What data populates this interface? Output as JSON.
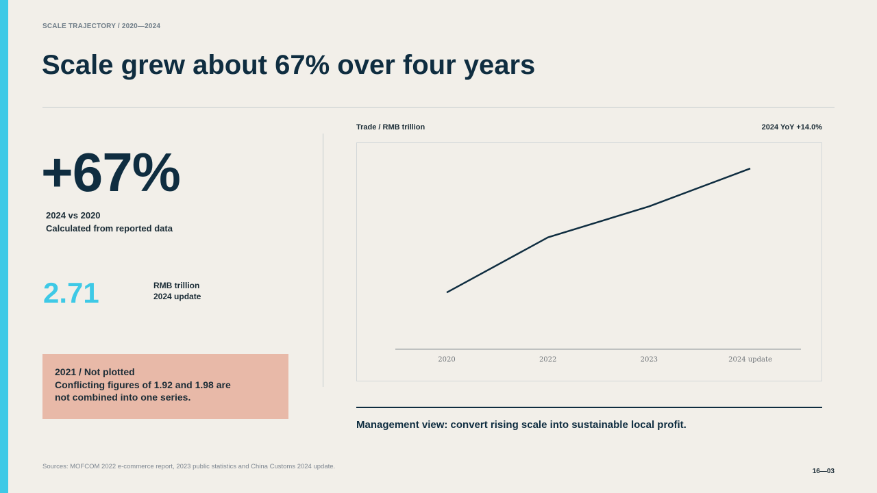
{
  "slide": {
    "kicker": "SCALE TRAJECTORY / 2020—2024",
    "title": "Scale grew about 67% over four years",
    "accent_color": "#3ec9e6",
    "primary_color": "#0f2d40"
  },
  "headline_stat": {
    "value": "+67%",
    "note_line1": "2024 vs 2020",
    "note_line2": "Calculated from reported data"
  },
  "secondary_stat": {
    "value": "2.71",
    "unit_line1": "RMB trillion",
    "unit_line2": "2024 update"
  },
  "callout": {
    "line1": "2021 / Not plotted",
    "line2": "Conflicting figures of 1.92 and 1.98 are",
    "line3": "not combined into one series.",
    "background_color": "#e8b9a8"
  },
  "chart_header": {
    "left_label": "Trade / RMB trillion",
    "right_label": "2024 YoY +14.0%"
  },
  "chart_data": {
    "type": "line",
    "categories": [
      "2020",
      "2022",
      "2023",
      "2024 update"
    ],
    "values": [
      1.63,
      2.11,
      2.38,
      2.71
    ],
    "title": "",
    "xlabel": "",
    "ylabel": "",
    "ylim": [
      0,
      3
    ],
    "grid": false,
    "line_color": "#0f2d40"
  },
  "management_view": "Management view: convert rising scale into sustainable local profit.",
  "sources": "Sources: MOFCOM 2022 e-commerce report, 2023 public statistics and China Customs 2024 update.",
  "page_number": "16—03"
}
